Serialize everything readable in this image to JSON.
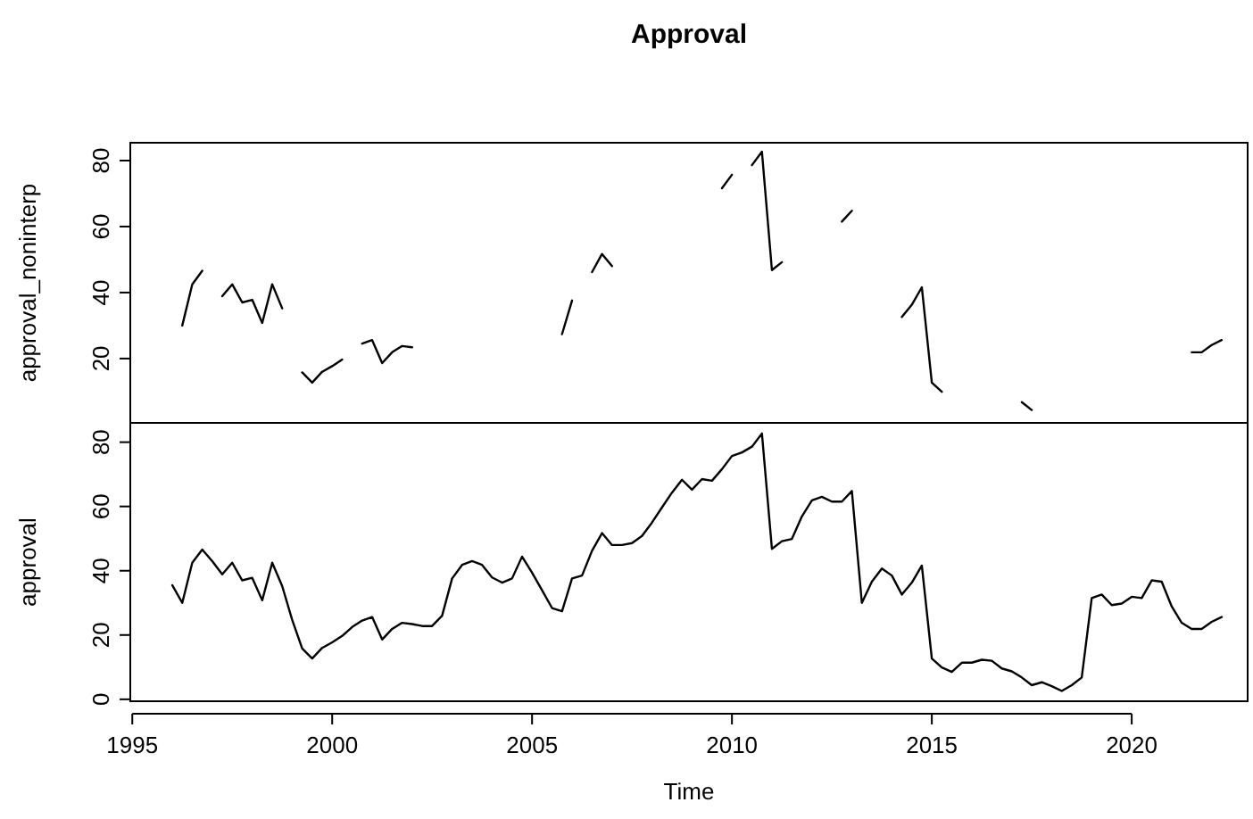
{
  "chart_data": [
    {
      "type": "line",
      "title": "Approval",
      "ylabel": "approval_noninterp",
      "tick_labels": "y",
      "xlim": [
        1994.95,
        2022.9
      ],
      "ylim": [
        0.5,
        85.4
      ],
      "yticks": [
        20,
        40,
        60,
        80
      ],
      "x": [
        1996.25,
        1996.5,
        1996.75,
        1997,
        1997.25,
        1997.5,
        1997.75,
        1998,
        1998.25,
        1998.5,
        1998.75,
        1999,
        1999.25,
        1999.5,
        1999.75,
        2000,
        2000.25,
        2000.5,
        2000.75,
        2001,
        2001.25,
        2001.5,
        2001.75,
        2002,
        2002.25,
        2002.5,
        2002.75,
        2003,
        2003.25,
        2003.5,
        2003.75,
        2004,
        2004.25,
        2004.5,
        2004.75,
        2005,
        2005.25,
        2005.5,
        2005.75,
        2006,
        2006.25,
        2006.5,
        2006.75,
        2007,
        2007.25,
        2007.5,
        2007.75,
        2008,
        2008.25,
        2008.5,
        2008.75,
        2009,
        2009.25,
        2009.5,
        2009.75,
        2010,
        2010.25,
        2010.5,
        2010.75,
        2011,
        2011.25,
        2011.5,
        2011.75,
        2012,
        2012.25,
        2012.5,
        2012.75,
        2013,
        2013.25,
        2013.5,
        2013.75,
        2014,
        2014.25,
        2014.5,
        2014.75,
        2015,
        2015.25,
        2015.5,
        2015.75,
        2016,
        2016.25,
        2016.5,
        2016.75,
        2017,
        2017.25,
        2017.5,
        2017.75,
        2018,
        2018.25,
        2018.5,
        2018.75,
        2019,
        2019.25,
        2019.5,
        2019.75,
        2020,
        2020.25,
        2020.5,
        2020.75,
        2021,
        2021.25,
        2021.5,
        2021.75,
        2022,
        2022.25
      ],
      "series": [
        {
          "color": "#000000",
          "values": [
            30,
            42.5,
            46.6,
            null,
            38.9,
            42.5,
            37,
            37.8,
            30.8,
            42.5,
            35.2,
            null,
            15.8,
            12.7,
            16,
            17.7,
            19.7,
            null,
            24.5,
            25.6,
            18.6,
            21.9,
            23.8,
            23.4,
            null,
            null,
            null,
            null,
            null,
            null,
            null,
            null,
            null,
            null,
            null,
            null,
            null,
            null,
            27.4,
            37.6,
            null,
            46.2,
            51.7,
            48,
            null,
            null,
            null,
            null,
            null,
            null,
            null,
            null,
            null,
            null,
            71.6,
            75.7,
            null,
            78.6,
            82.7,
            46.8,
            49.2,
            null,
            null,
            null,
            null,
            null,
            61.5,
            64.8,
            null,
            null,
            null,
            null,
            32.6,
            36.3,
            41.6,
            12.7,
            9.9,
            null,
            null,
            null,
            null,
            null,
            null,
            null,
            6.8,
            4.4,
            null,
            null,
            null,
            null,
            null,
            null,
            null,
            null,
            null,
            null,
            null,
            null,
            null,
            null,
            null,
            21.9,
            21.9,
            24.1,
            25.6
          ]
        }
      ]
    },
    {
      "type": "line",
      "xlabel": "Time",
      "ylabel": "approval",
      "xlim": [
        1994.95,
        2022.9
      ],
      "ylim": [
        -0.6,
        86
      ],
      "xticks": [
        1995,
        2000,
        2005,
        2010,
        2015,
        2020
      ],
      "yticks": [
        0,
        20,
        40,
        60,
        80
      ],
      "x": [
        1996,
        1996.25,
        1996.5,
        1996.75,
        1997,
        1997.25,
        1997.5,
        1997.75,
        1998,
        1998.25,
        1998.5,
        1998.75,
        1999,
        1999.25,
        1999.5,
        1999.75,
        2000,
        2000.25,
        2000.5,
        2000.75,
        2001,
        2001.25,
        2001.5,
        2001.75,
        2002,
        2002.25,
        2002.5,
        2002.75,
        2003,
        2003.25,
        2003.5,
        2003.75,
        2004,
        2004.25,
        2004.5,
        2004.75,
        2005,
        2005.25,
        2005.5,
        2005.75,
        2006,
        2006.25,
        2006.5,
        2006.75,
        2007,
        2007.25,
        2007.5,
        2007.75,
        2008,
        2008.25,
        2008.5,
        2008.75,
        2009,
        2009.25,
        2009.5,
        2009.75,
        2010,
        2010.25,
        2010.5,
        2010.75,
        2011,
        2011.25,
        2011.5,
        2011.75,
        2012,
        2012.25,
        2012.5,
        2012.75,
        2013,
        2013.25,
        2013.5,
        2013.75,
        2014,
        2014.25,
        2014.5,
        2014.75,
        2015,
        2015.25,
        2015.5,
        2015.75,
        2016,
        2016.25,
        2016.5,
        2016.75,
        2017,
        2017.25,
        2017.5,
        2017.75,
        2018,
        2018.25,
        2018.5,
        2018.75,
        2019,
        2019.25,
        2019.5,
        2019.75,
        2020,
        2020.25,
        2020.5,
        2020.75,
        2021,
        2021.25,
        2021.5,
        2021.75,
        2022,
        2022.25
      ],
      "series": [
        {
          "color": "#000000",
          "values": [
            35.5,
            30,
            42.5,
            46.6,
            43,
            38.9,
            42.5,
            37,
            37.8,
            30.8,
            42.5,
            35.2,
            24.7,
            15.8,
            12.7,
            16,
            17.7,
            19.7,
            22.5,
            24.5,
            25.6,
            18.6,
            21.9,
            23.8,
            23.4,
            22.8,
            22.8,
            26,
            37.6,
            41.8,
            43,
            41.8,
            37.9,
            36.3,
            37.6,
            44.4,
            39.4,
            33.9,
            28.4,
            27.4,
            37.6,
            38.5,
            46.2,
            51.7,
            48,
            48,
            48.6,
            50.8,
            55,
            59.7,
            64.3,
            68.3,
            65.2,
            68.5,
            68,
            71.6,
            75.7,
            76.8,
            78.6,
            82.7,
            46.8,
            49.2,
            49.9,
            56.9,
            61.9,
            63,
            61.5,
            61.5,
            64.8,
            30,
            36.6,
            40.7,
            38.5,
            32.6,
            36.3,
            41.6,
            12.7,
            9.9,
            8.5,
            11.4,
            11.4,
            12.3,
            12,
            9.6,
            8.7,
            6.8,
            4.4,
            5.3,
            4.1,
            2.6,
            4.4,
            6.8,
            31.5,
            32.6,
            29.3,
            29.8,
            31.9,
            31.5,
            37,
            36.6,
            28.9,
            23.8,
            21.9,
            21.9,
            24.1,
            25.6
          ]
        }
      ]
    }
  ]
}
